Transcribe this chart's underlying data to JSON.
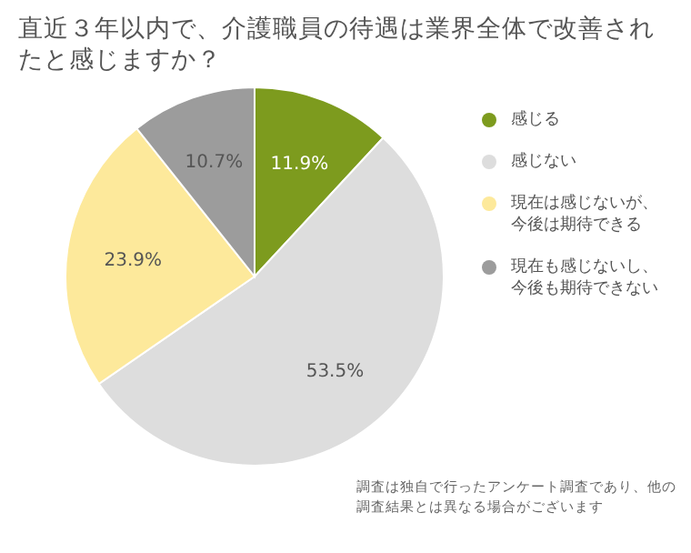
{
  "chart_data": {
    "type": "pie",
    "title": "直近３年以内で、介護職員の待遇は業界全体で改善されたと感じますか？",
    "categories": [
      "感じる",
      "感じない",
      "現在は感じないが、今後は期待できる",
      "現在も感じないし、今後も期待できない"
    ],
    "values": [
      11.9,
      53.5,
      23.9,
      10.7
    ],
    "value_labels": [
      "11.9%",
      "53.5%",
      "23.9%",
      "10.7%"
    ],
    "colors": [
      "#7d9b1e",
      "#dddddd",
      "#fde99b",
      "#9c9c9c"
    ],
    "legend": "right",
    "annotations": [
      "調査は独自で行ったアンケート調査であり、他の調査結果とは異なる場合がございます"
    ]
  }
}
